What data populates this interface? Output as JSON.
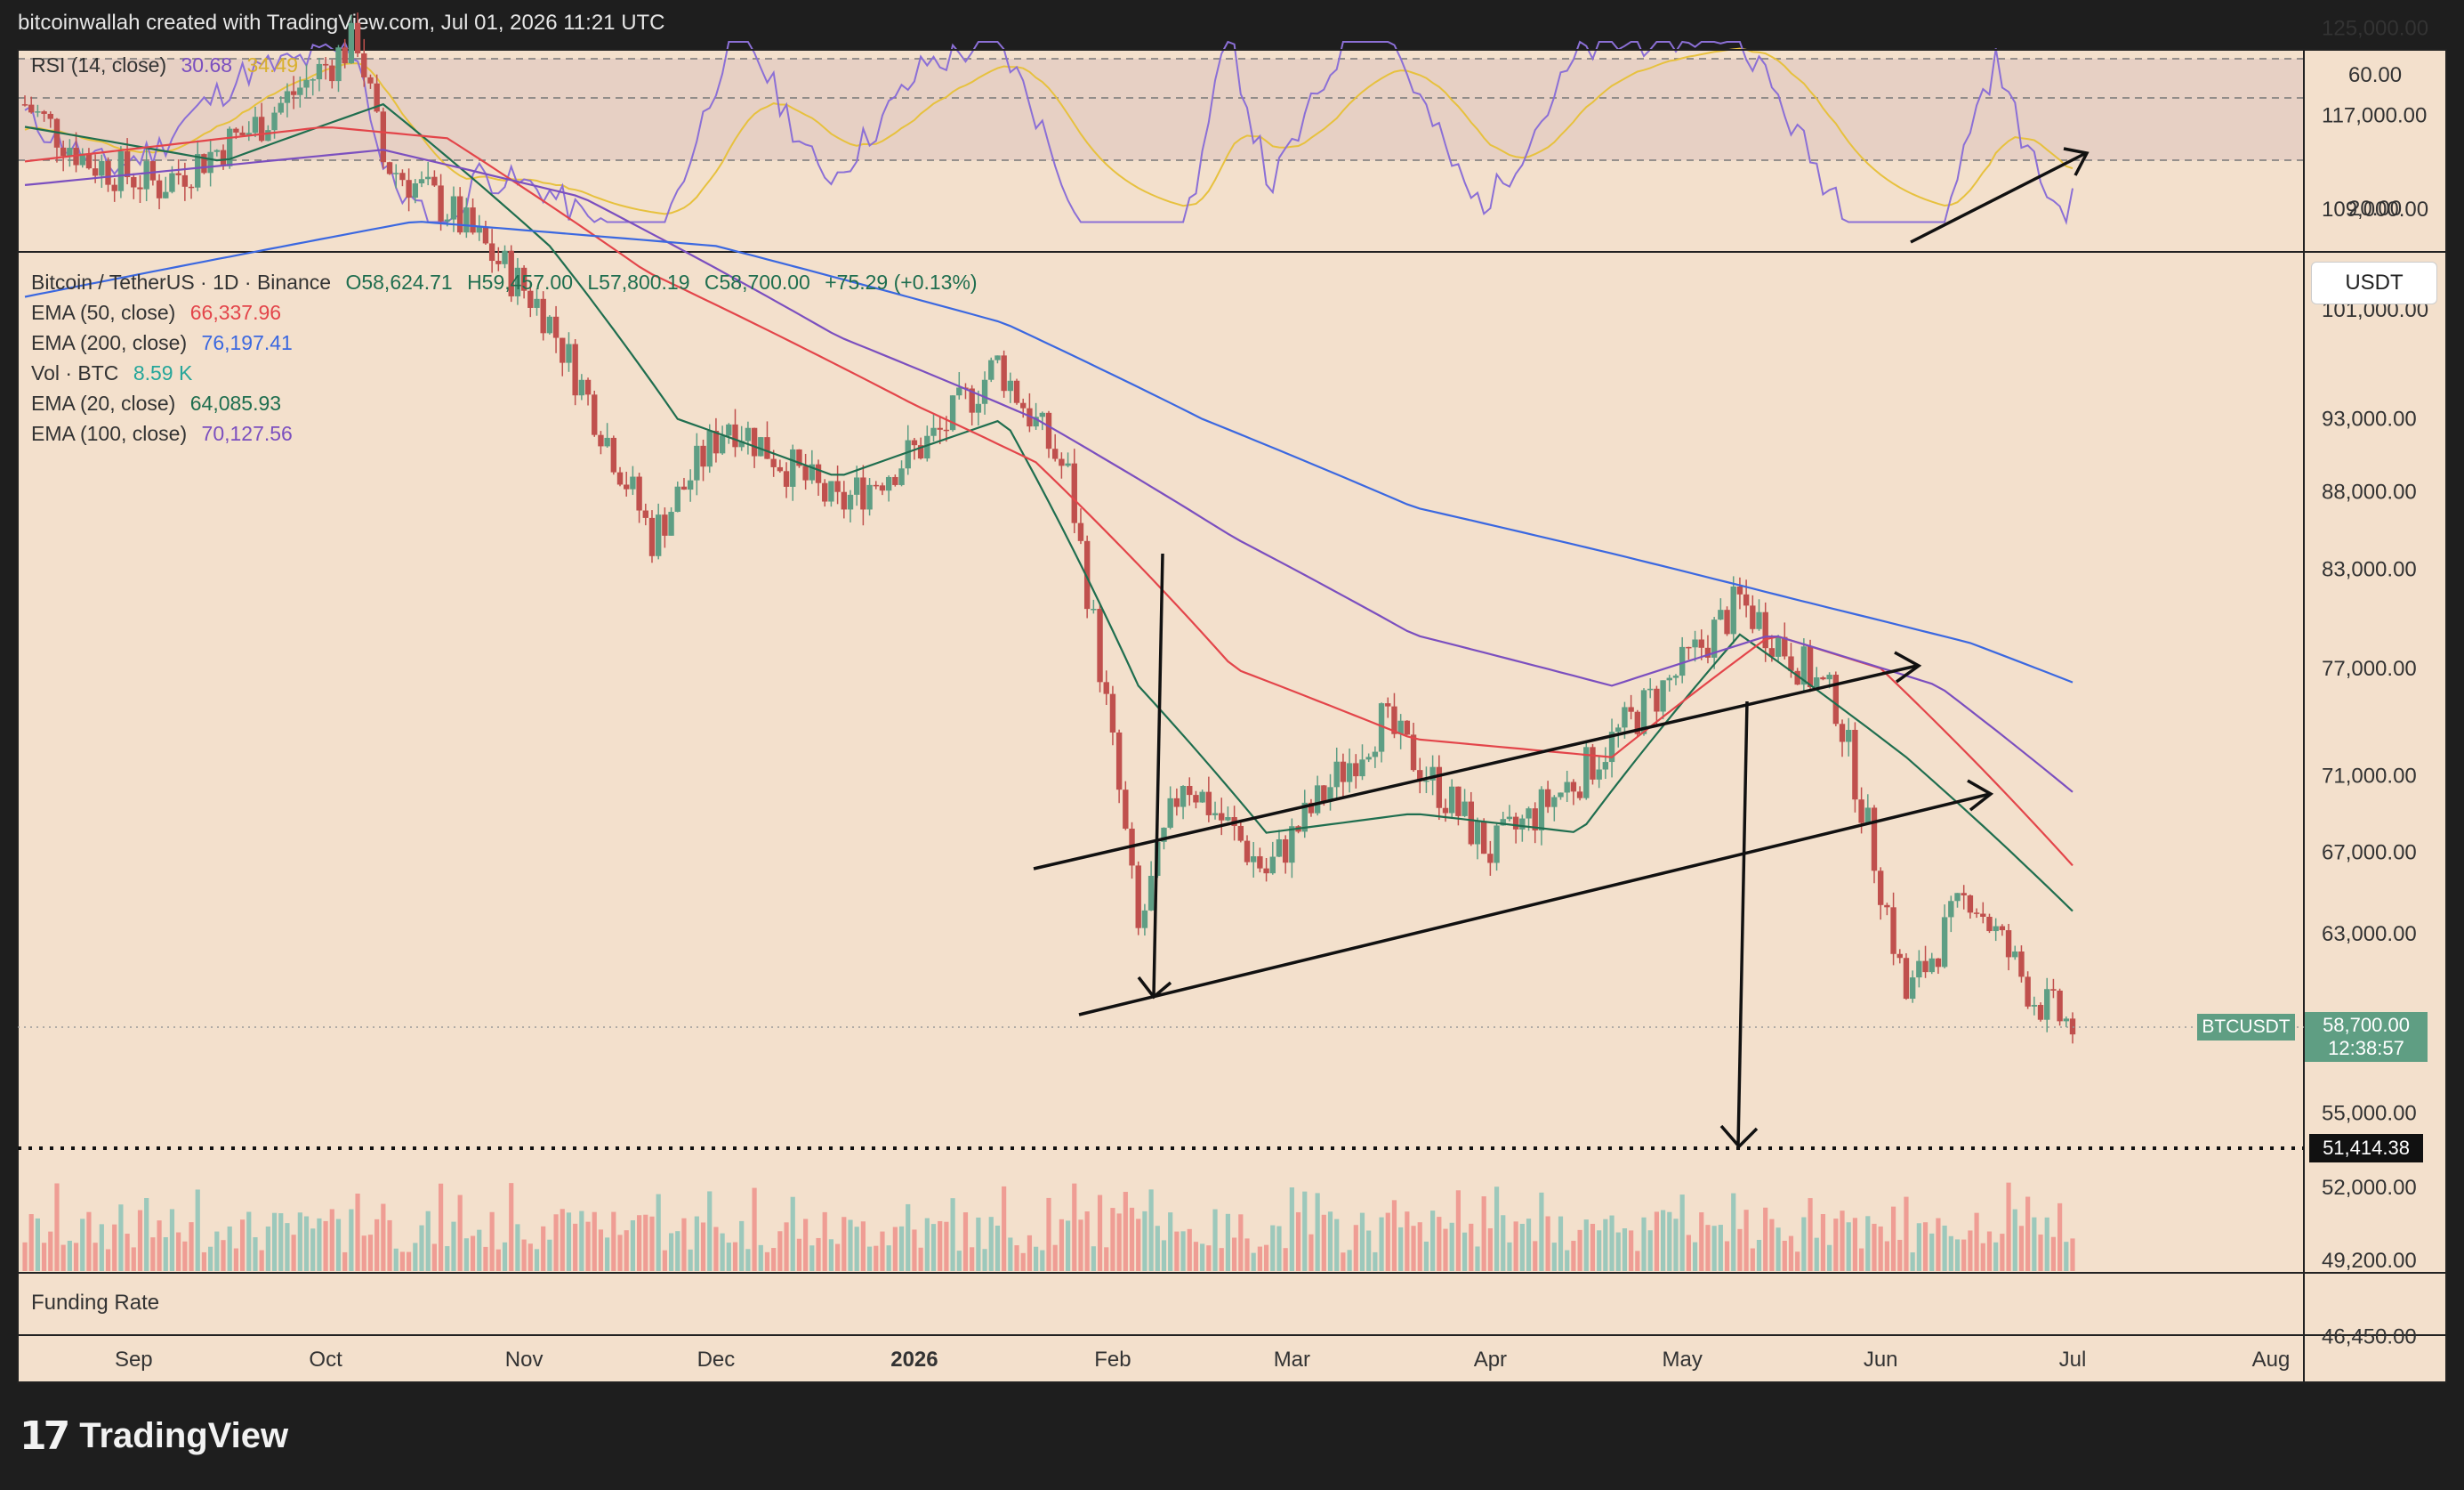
{
  "header": {
    "text": "bitcoinwallah created with TradingView.com, Jul 01, 2026 11:21 UTC"
  },
  "footer": {
    "brand": "TradingView"
  },
  "rsi_panel": {
    "label": "RSI (14, close)",
    "value": "30.68",
    "ma_value": "34.49",
    "ticks": [
      "60.00",
      "20.00"
    ]
  },
  "main_panel": {
    "legend": {
      "symbol": "Bitcoin / TetherUS · 1D · Binance",
      "open": "O58,624.71",
      "high": "H59,457.00",
      "low": "L57,800.19",
      "close": "C58,700.00",
      "change": "+75.29 (+0.13%)",
      "ema50_label": "EMA (50, close)",
      "ema50_value": "66,337.96",
      "ema200_label": "EMA (200, close)",
      "ema200_value": "76,197.41",
      "vol_label": "Vol · BTC",
      "vol_value": "8.59 K",
      "ema20_label": "EMA (20, close)",
      "ema20_value": "64,085.93",
      "ema100_label": "EMA (100, close)",
      "ema100_value": "70,127.56"
    },
    "currency_button": "USDT",
    "price_ticks": [
      "125,000.00",
      "117,000.00",
      "109,000.00",
      "101,000.00",
      "93,000.00",
      "88,000.00",
      "83,000.00",
      "77,000.00",
      "71,000.00",
      "67,000.00",
      "63,000.00",
      "55,000.00",
      "52,000.00",
      "49,200.00",
      "46,450.00"
    ],
    "current_price": {
      "symbol": "BTCUSDT",
      "price": "58,700.00",
      "countdown": "12:38:57"
    },
    "target_level": "51,414.38"
  },
  "funding_panel": {
    "label": "Funding Rate"
  },
  "time_axis": {
    "labels": [
      "Sep",
      "Oct",
      "Nov",
      "Dec",
      "2026",
      "Feb",
      "Mar",
      "Apr",
      "May",
      "Jun",
      "Jul",
      "Aug"
    ]
  },
  "colors": {
    "background": "#f3e0cc",
    "up": "#5e9e84",
    "down": "#c0504d",
    "ema20": "#1f6e4f",
    "ema50": "#e3454a",
    "ema100": "#7b4fbf",
    "ema200": "#3b68e0",
    "rsi": "#8b6fd6",
    "rsi_ma": "#e7c13e"
  },
  "chart_data": {
    "type": "candlestick",
    "x_range": [
      "2025-08-15",
      "2026-07-01"
    ],
    "ylim": [
      45000,
      130000
    ],
    "y_scale": "log",
    "series": [
      {
        "name": "EMA (20, close)",
        "x": [
          "2025-08-15",
          "2025-09-15",
          "2025-10-10",
          "2025-11-05",
          "2025-11-25",
          "2025-12-20",
          "2026-01-15",
          "2026-02-05",
          "2026-02-25",
          "2026-03-20",
          "2026-04-15",
          "2026-05-10",
          "2026-06-05",
          "2026-07-01"
        ],
        "values": [
          116000,
          113000,
          118000,
          106000,
          93000,
          89000,
          93000,
          76000,
          68000,
          69000,
          68000,
          79000,
          72000,
          64086
        ]
      },
      {
        "name": "EMA (50, close)",
        "x": [
          "2025-08-15",
          "2025-10-01",
          "2025-10-20",
          "2025-11-20",
          "2026-01-01",
          "2026-01-20",
          "2026-02-20",
          "2026-03-20",
          "2026-04-20",
          "2026-05-15",
          "2026-06-01",
          "2026-07-01"
        ],
        "values": [
          113000,
          116000,
          115000,
          104000,
          94000,
          90000,
          77000,
          73000,
          72000,
          79000,
          77000,
          66338
        ]
      },
      {
        "name": "EMA (100, close)",
        "x": [
          "2025-08-15",
          "2025-10-10",
          "2025-11-10",
          "2025-12-20",
          "2026-01-20",
          "2026-02-20",
          "2026-03-20",
          "2026-04-20",
          "2026-05-15",
          "2026-06-10",
          "2026-07-01"
        ],
        "values": [
          111000,
          114000,
          110000,
          99000,
          93000,
          85000,
          79000,
          76000,
          79000,
          76000,
          70128
        ]
      },
      {
        "name": "EMA (200, close)",
        "x": [
          "2025-08-15",
          "2025-10-15",
          "2025-12-01",
          "2026-01-15",
          "2026-02-15",
          "2026-03-20",
          "2026-04-20",
          "2026-05-20",
          "2026-06-15",
          "2026-07-01"
        ],
        "values": [
          102000,
          108000,
          106000,
          100000,
          93000,
          87000,
          84000,
          81000,
          78500,
          76197
        ]
      },
      {
        "name": "Price (close)",
        "x": [
          "2025-08-15",
          "2025-08-25",
          "2025-09-05",
          "2025-09-20",
          "2025-10-06",
          "2025-10-10",
          "2025-10-20",
          "2025-11-04",
          "2025-11-21",
          "2025-12-03",
          "2025-12-20",
          "2026-01-05",
          "2026-01-14",
          "2026-01-25",
          "2026-02-05",
          "2026-02-12",
          "2026-02-25",
          "2026-03-15",
          "2026-04-01",
          "2026-04-15",
          "2026-05-01",
          "2026-05-10",
          "2026-05-25",
          "2026-06-05",
          "2026-06-15",
          "2026-06-25",
          "2026-07-01"
        ],
        "values": [
          118000,
          113000,
          111000,
          116000,
          124000,
          113000,
          109000,
          101000,
          85000,
          93000,
          87000,
          92000,
          97000,
          89000,
          63000,
          71000,
          66000,
          74000,
          67000,
          71000,
          77000,
          81000,
          75000,
          60000,
          65000,
          60000,
          58700
        ]
      }
    ],
    "annotations": [
      "ascending channel",
      "measured-move arrow to 51,414.38",
      "RSI rising arrow"
    ]
  }
}
